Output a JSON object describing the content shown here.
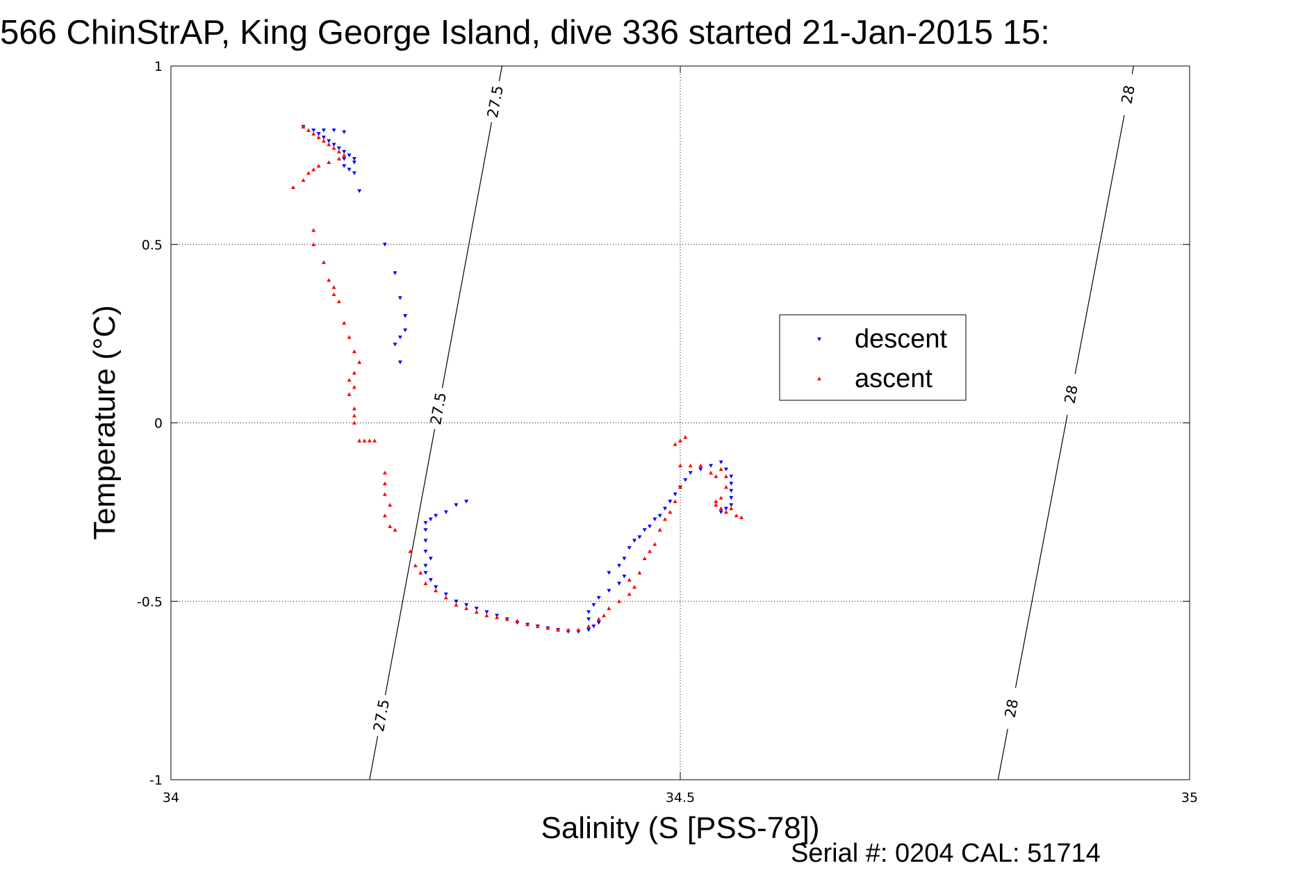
{
  "chart_data": {
    "type": "scatter",
    "title": "566 ChinStrAP, King George Island, dive 336 started 21-Jan-2015 15:",
    "xlabel": "Salinity (S [PSS-78])",
    "ylabel": "Temperature (°C)",
    "xlim": [
      34,
      35
    ],
    "ylim": [
      -1,
      1
    ],
    "x_ticks": [
      "34",
      "34.5",
      "35"
    ],
    "y_ticks": [
      "1",
      "0.5",
      "0",
      "-0.5",
      "-1"
    ],
    "grid": true,
    "legend_position": "center-right",
    "isopycnals": [
      {
        "sigma": "27.5",
        "x_at_ymin": 34.195,
        "x_at_ymax": 34.325,
        "labels_y": [
          -0.82,
          0.04,
          0.9
        ]
      },
      {
        "sigma": "28",
        "x_at_ymin": 34.812,
        "x_at_ymax": 34.945,
        "labels_y": [
          -0.8,
          0.08,
          0.92
        ]
      }
    ],
    "series": [
      {
        "name": "descent",
        "color": "#0000ff",
        "marker": "triangle-down",
        "points": [
          [
            34.13,
            0.83
          ],
          [
            34.14,
            0.82
          ],
          [
            34.15,
            0.82
          ],
          [
            34.16,
            0.82
          ],
          [
            34.17,
            0.815
          ],
          [
            34.145,
            0.81
          ],
          [
            34.15,
            0.8
          ],
          [
            34.155,
            0.79
          ],
          [
            34.16,
            0.78
          ],
          [
            34.165,
            0.77
          ],
          [
            34.17,
            0.76
          ],
          [
            34.175,
            0.75
          ],
          [
            34.18,
            0.74
          ],
          [
            34.17,
            0.74
          ],
          [
            34.18,
            0.73
          ],
          [
            34.17,
            0.72
          ],
          [
            34.175,
            0.71
          ],
          [
            34.18,
            0.7
          ],
          [
            34.185,
            0.65
          ],
          [
            34.21,
            0.5
          ],
          [
            34.22,
            0.42
          ],
          [
            34.225,
            0.35
          ],
          [
            34.23,
            0.3
          ],
          [
            34.23,
            0.26
          ],
          [
            34.225,
            0.24
          ],
          [
            34.22,
            0.22
          ],
          [
            34.225,
            0.17
          ],
          [
            34.29,
            -0.22
          ],
          [
            34.28,
            -0.23
          ],
          [
            34.27,
            -0.25
          ],
          [
            34.26,
            -0.26
          ],
          [
            34.255,
            -0.27
          ],
          [
            34.25,
            -0.28
          ],
          [
            34.25,
            -0.3
          ],
          [
            34.25,
            -0.33
          ],
          [
            34.25,
            -0.36
          ],
          [
            34.255,
            -0.38
          ],
          [
            34.25,
            -0.4
          ],
          [
            34.25,
            -0.42
          ],
          [
            34.255,
            -0.44
          ],
          [
            34.26,
            -0.46
          ],
          [
            34.27,
            -0.48
          ],
          [
            34.28,
            -0.5
          ],
          [
            34.29,
            -0.51
          ],
          [
            34.3,
            -0.52
          ],
          [
            34.31,
            -0.53
          ],
          [
            34.32,
            -0.54
          ],
          [
            34.33,
            -0.55
          ],
          [
            34.34,
            -0.56
          ],
          [
            34.35,
            -0.565
          ],
          [
            34.36,
            -0.57
          ],
          [
            34.37,
            -0.575
          ],
          [
            34.38,
            -0.58
          ],
          [
            34.39,
            -0.585
          ],
          [
            34.4,
            -0.585
          ],
          [
            34.41,
            -0.58
          ],
          [
            34.415,
            -0.57
          ],
          [
            34.42,
            -0.56
          ],
          [
            34.41,
            -0.55
          ],
          [
            34.41,
            -0.53
          ],
          [
            34.415,
            -0.51
          ],
          [
            34.42,
            -0.49
          ],
          [
            34.43,
            -0.47
          ],
          [
            34.44,
            -0.45
          ],
          [
            34.445,
            -0.43
          ],
          [
            34.43,
            -0.42
          ],
          [
            34.44,
            -0.4
          ],
          [
            34.445,
            -0.38
          ],
          [
            34.45,
            -0.35
          ],
          [
            34.455,
            -0.33
          ],
          [
            34.46,
            -0.32
          ],
          [
            34.465,
            -0.3
          ],
          [
            34.47,
            -0.29
          ],
          [
            34.475,
            -0.27
          ],
          [
            34.48,
            -0.26
          ],
          [
            34.485,
            -0.24
          ],
          [
            34.49,
            -0.22
          ],
          [
            34.495,
            -0.2
          ],
          [
            34.5,
            -0.18
          ],
          [
            34.505,
            -0.16
          ],
          [
            34.51,
            -0.14
          ],
          [
            34.52,
            -0.13
          ],
          [
            34.53,
            -0.12
          ],
          [
            34.54,
            -0.11
          ],
          [
            34.545,
            -0.13
          ],
          [
            34.55,
            -0.15
          ],
          [
            34.55,
            -0.17
          ],
          [
            34.55,
            -0.19
          ],
          [
            34.55,
            -0.21
          ],
          [
            34.55,
            -0.23
          ],
          [
            34.545,
            -0.24
          ],
          [
            34.54,
            -0.25
          ]
        ]
      },
      {
        "name": "ascent",
        "color": "#ff0000",
        "marker": "triangle-up",
        "points": [
          [
            34.13,
            0.83
          ],
          [
            34.135,
            0.82
          ],
          [
            34.14,
            0.81
          ],
          [
            34.145,
            0.8
          ],
          [
            34.15,
            0.79
          ],
          [
            34.155,
            0.78
          ],
          [
            34.16,
            0.77
          ],
          [
            34.165,
            0.76
          ],
          [
            34.17,
            0.75
          ],
          [
            34.165,
            0.74
          ],
          [
            34.155,
            0.73
          ],
          [
            34.145,
            0.72
          ],
          [
            34.14,
            0.71
          ],
          [
            34.135,
            0.7
          ],
          [
            34.13,
            0.68
          ],
          [
            34.12,
            0.66
          ],
          [
            34.14,
            0.54
          ],
          [
            34.14,
            0.5
          ],
          [
            34.15,
            0.45
          ],
          [
            34.155,
            0.4
          ],
          [
            34.16,
            0.38
          ],
          [
            34.16,
            0.36
          ],
          [
            34.165,
            0.34
          ],
          [
            34.17,
            0.28
          ],
          [
            34.175,
            0.24
          ],
          [
            34.18,
            0.2
          ],
          [
            34.185,
            0.17
          ],
          [
            34.18,
            0.14
          ],
          [
            34.175,
            0.12
          ],
          [
            34.18,
            0.1
          ],
          [
            34.175,
            0.08
          ],
          [
            34.18,
            0.04
          ],
          [
            34.18,
            0.02
          ],
          [
            34.18,
            0.0
          ],
          [
            34.185,
            -0.05
          ],
          [
            34.19,
            -0.05
          ],
          [
            34.195,
            -0.05
          ],
          [
            34.2,
            -0.05
          ],
          [
            34.21,
            -0.14
          ],
          [
            34.21,
            -0.17
          ],
          [
            34.21,
            -0.2
          ],
          [
            34.215,
            -0.23
          ],
          [
            34.21,
            -0.26
          ],
          [
            34.215,
            -0.29
          ],
          [
            34.22,
            -0.3
          ],
          [
            34.235,
            -0.36
          ],
          [
            34.24,
            -0.4
          ],
          [
            34.245,
            -0.42
          ],
          [
            34.25,
            -0.45
          ],
          [
            34.26,
            -0.47
          ],
          [
            34.27,
            -0.49
          ],
          [
            34.28,
            -0.51
          ],
          [
            34.29,
            -0.52
          ],
          [
            34.3,
            -0.53
          ],
          [
            34.31,
            -0.54
          ],
          [
            34.32,
            -0.545
          ],
          [
            34.33,
            -0.55
          ],
          [
            34.34,
            -0.555
          ],
          [
            34.35,
            -0.565
          ],
          [
            34.36,
            -0.57
          ],
          [
            34.37,
            -0.575
          ],
          [
            34.38,
            -0.58
          ],
          [
            34.39,
            -0.58
          ],
          [
            34.4,
            -0.58
          ],
          [
            34.41,
            -0.57
          ],
          [
            34.42,
            -0.55
          ],
          [
            34.425,
            -0.54
          ],
          [
            34.43,
            -0.52
          ],
          [
            34.44,
            -0.5
          ],
          [
            34.45,
            -0.48
          ],
          [
            34.455,
            -0.46
          ],
          [
            34.45,
            -0.44
          ],
          [
            34.46,
            -0.42
          ],
          [
            34.465,
            -0.38
          ],
          [
            34.47,
            -0.36
          ],
          [
            34.475,
            -0.34
          ],
          [
            34.48,
            -0.3
          ],
          [
            34.485,
            -0.27
          ],
          [
            34.49,
            -0.25
          ],
          [
            34.495,
            -0.22
          ],
          [
            34.5,
            -0.18
          ],
          [
            34.5,
            -0.05
          ],
          [
            34.495,
            -0.06
          ],
          [
            34.505,
            -0.04
          ],
          [
            34.5,
            -0.12
          ],
          [
            34.51,
            -0.12
          ],
          [
            34.52,
            -0.12
          ],
          [
            34.53,
            -0.14
          ],
          [
            34.535,
            -0.15
          ],
          [
            34.54,
            -0.13
          ],
          [
            34.545,
            -0.15
          ],
          [
            34.545,
            -0.18
          ],
          [
            34.54,
            -0.21
          ],
          [
            34.535,
            -0.23
          ],
          [
            34.54,
            -0.24
          ],
          [
            34.545,
            -0.25
          ],
          [
            34.55,
            -0.24
          ],
          [
            34.555,
            -0.26
          ],
          [
            34.56,
            -0.265
          ],
          [
            34.535,
            -0.22
          ]
        ]
      }
    ],
    "footer": "Serial #: 0204  CAL: 51714"
  }
}
